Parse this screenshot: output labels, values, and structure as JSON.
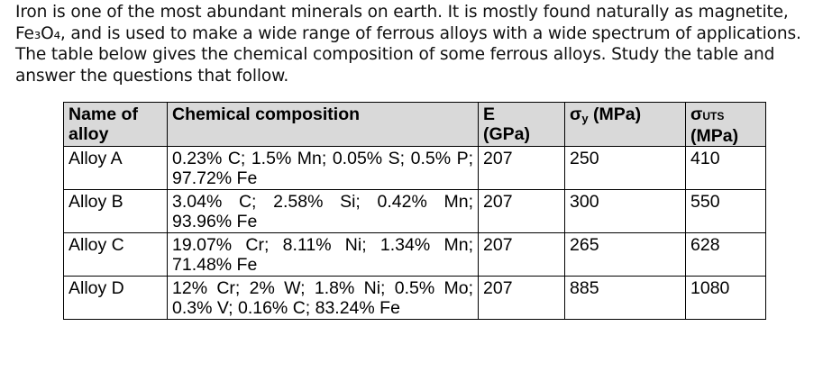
{
  "intro_lines": [
    "Iron is one of the most abundant minerals on earth. It is mostly found naturally as magnetite,",
    "Fe₃O₄, and is used to make a wide range of ferrous alloys with a wide spectrum of applications.",
    "The table below gives the chemical composition of some ferrous alloys. Study the table and",
    "answer the questions that follow."
  ],
  "table": {
    "headers": {
      "name": "Name of alloy",
      "composition": "Chemical composition",
      "e_symbol": "E",
      "e_unit": "(GPa)",
      "sy_symbol": "σ",
      "sy_sub": "y",
      "sy_unit": "(MPa)",
      "suts_symbol": "σ",
      "suts_sub": "UTS",
      "suts_unit": "(MPa)"
    },
    "rows": [
      {
        "name": "Alloy A",
        "composition": "0.23% C; 1.5% Mn; 0.05% S; 0.5% P; 97.72% Fe",
        "e": "207",
        "sy": "250",
        "suts": "410"
      },
      {
        "name": "Alloy B",
        "composition": "3.04% C; 2.58% Si; 0.42% Mn; 93.96% Fe",
        "e": "207",
        "sy": "300",
        "suts": "550"
      },
      {
        "name": "Alloy C",
        "composition": "19.07% Cr; 8.11% Ni; 1.34% Mn; 71.48% Fe",
        "e": "207",
        "sy": "265",
        "suts": "628"
      },
      {
        "name": "Alloy D",
        "composition": "12% Cr; 2% W; 1.8% Ni; 0.5% Mo; 0.3% V; 0.16% C; 83.24% Fe",
        "e": "207",
        "sy": "885",
        "suts": "1080"
      }
    ]
  }
}
